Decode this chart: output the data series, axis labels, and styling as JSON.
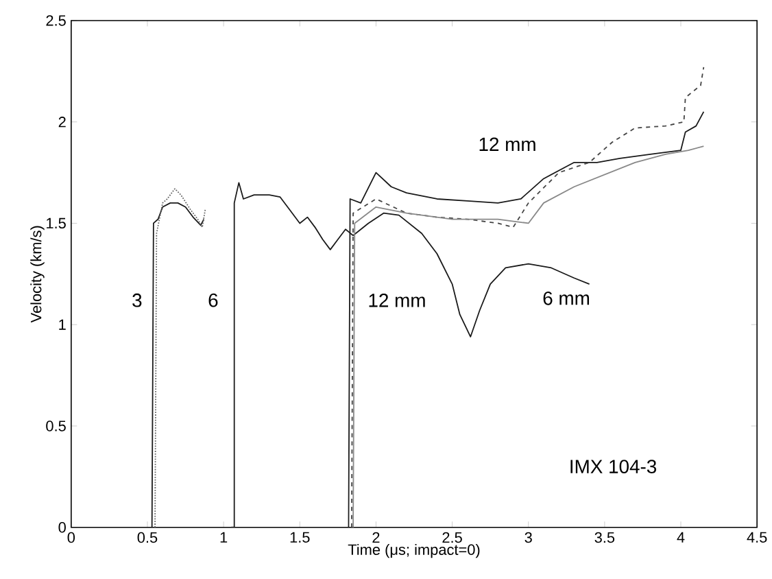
{
  "chart_data": {
    "type": "line",
    "xlabel": "Time (μs; impact=0)",
    "ylabel": "Velocity (km/s)",
    "xlim": [
      0,
      4.5
    ],
    "ylim": [
      0,
      2.5
    ],
    "xticks": [
      0,
      0.5,
      1,
      1.5,
      2,
      2.5,
      3,
      3.5,
      4,
      4.5
    ],
    "yticks": [
      0,
      0.5,
      1,
      1.5,
      2,
      2.5
    ],
    "grid": false,
    "marker": "none",
    "line_style": "solid",
    "series": [
      {
        "color": "#1a1a1a",
        "x": [
          0.53,
          0.54,
          0.57,
          0.6,
          0.65,
          0.7,
          0.75,
          0.8,
          0.85,
          0.87
        ],
        "values": [
          0,
          1.5,
          1.52,
          1.58,
          1.6,
          1.6,
          1.58,
          1.53,
          1.49,
          1.52
        ]
      },
      {
        "color": "#666666",
        "line_style": "dotted",
        "x": [
          0.55,
          0.56,
          0.6,
          0.63,
          0.68,
          0.72,
          0.78,
          0.83,
          0.86,
          0.88
        ],
        "values": [
          0,
          1.45,
          1.6,
          1.62,
          1.67,
          1.64,
          1.57,
          1.52,
          1.48,
          1.57
        ]
      },
      {
        "color": "#1a1a1a",
        "x": [
          1.05,
          1.07,
          1.07,
          1.1,
          1.13,
          1.2,
          1.3,
          1.37,
          1.42,
          1.5,
          1.55,
          1.6,
          1.65,
          1.7,
          1.75,
          1.8,
          1.85,
          1.95,
          2.05,
          2.15,
          2.3,
          2.4,
          2.5,
          2.55,
          2.62,
          2.68,
          2.75,
          2.85,
          3.0,
          3.15,
          3.3,
          3.4
        ],
        "values": [
          0,
          0,
          1.6,
          1.7,
          1.62,
          1.64,
          1.64,
          1.63,
          1.58,
          1.5,
          1.53,
          1.48,
          1.42,
          1.37,
          1.42,
          1.47,
          1.44,
          1.5,
          1.55,
          1.54,
          1.45,
          1.35,
          1.2,
          1.05,
          0.94,
          1.07,
          1.2,
          1.28,
          1.3,
          1.28,
          1.23,
          1.2
        ]
      },
      {
        "color": "#1a1a1a",
        "x": [
          1.82,
          1.83,
          1.9,
          2.0,
          2.1,
          2.2,
          2.4,
          2.6,
          2.8,
          2.95,
          3.1,
          3.3,
          3.45,
          3.6,
          3.8,
          4.0,
          4.03,
          4.1,
          4.15
        ],
        "values": [
          0,
          1.62,
          1.6,
          1.75,
          1.68,
          1.65,
          1.62,
          1.61,
          1.6,
          1.62,
          1.72,
          1.8,
          1.8,
          1.82,
          1.84,
          1.86,
          1.95,
          1.98,
          2.05
        ]
      },
      {
        "color": "#444444",
        "line_style": "dashed",
        "x": [
          1.84,
          1.85,
          2.0,
          2.2,
          2.4,
          2.6,
          2.8,
          2.9,
          3.0,
          3.2,
          3.4,
          3.55,
          3.7,
          3.9,
          4.02,
          4.03,
          4.13,
          4.15
        ],
        "values": [
          0,
          1.55,
          1.62,
          1.55,
          1.53,
          1.52,
          1.5,
          1.48,
          1.6,
          1.75,
          1.8,
          1.9,
          1.97,
          1.98,
          2.0,
          2.12,
          2.18,
          2.27
        ]
      },
      {
        "color": "#888888",
        "x": [
          1.85,
          1.86,
          2.0,
          2.2,
          2.5,
          2.8,
          3.0,
          3.1,
          3.3,
          3.5,
          3.7,
          3.9,
          4.05,
          4.15
        ],
        "values": [
          0,
          1.5,
          1.58,
          1.55,
          1.52,
          1.52,
          1.5,
          1.6,
          1.68,
          1.74,
          1.8,
          1.84,
          1.86,
          1.88
        ]
      }
    ],
    "annotations": [
      "3",
      "6",
      "12 mm",
      "6 mm",
      "12 mm",
      "IMX 104-3"
    ]
  }
}
